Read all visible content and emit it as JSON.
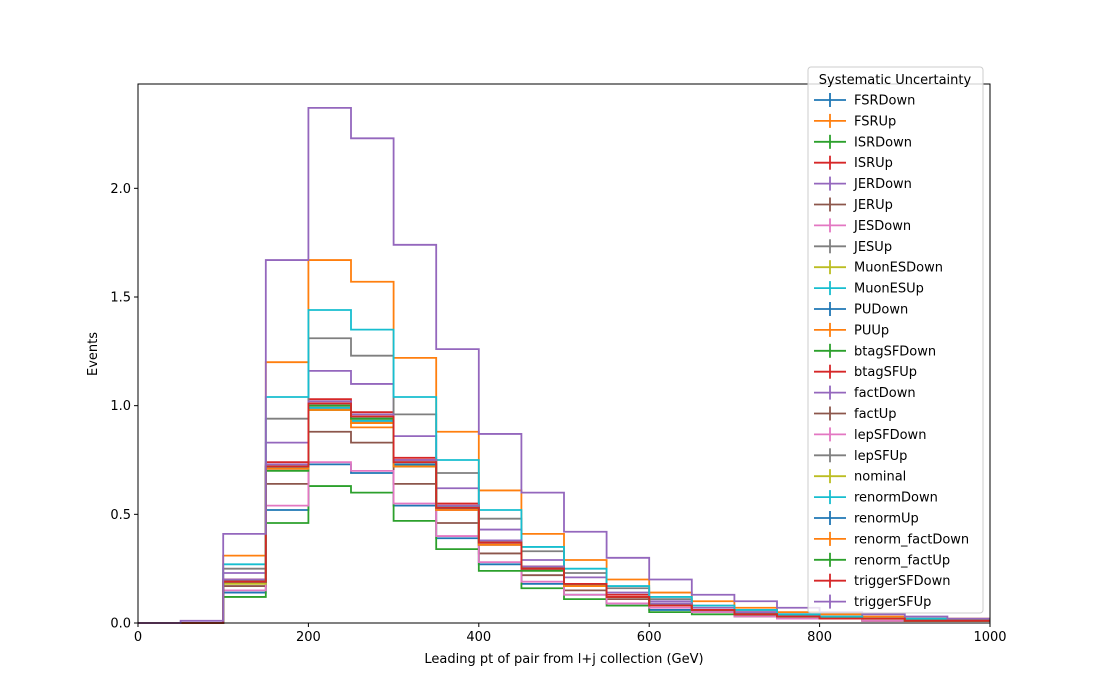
{
  "chart_data": {
    "type": "histogram-step",
    "xlabel": "Leading pt of pair from l+j collection (GeV)",
    "ylabel": "Events",
    "xlim": [
      0,
      1000
    ],
    "ylim": [
      0,
      2.48
    ],
    "grid": false,
    "legend": {
      "title": "Systematic Uncertainty",
      "placement": "upper-right"
    },
    "bin_edges": [
      0,
      50,
      100,
      150,
      200,
      250,
      300,
      350,
      400,
      450,
      500,
      550,
      600,
      650,
      700,
      750,
      800,
      850,
      900,
      950,
      1000
    ],
    "x_ticks": [
      0,
      200,
      400,
      600,
      800,
      1000
    ],
    "y_ticks": [
      0.0,
      0.5,
      1.0,
      1.5,
      2.0
    ],
    "y_tick_labels": [
      "0.0",
      "0.5",
      "1.0",
      "1.5",
      "2.0"
    ],
    "series": [
      {
        "name": "FSRDown",
        "color": "#1f77b4",
        "values": [
          0.0,
          0.0,
          0.14,
          0.52,
          0.73,
          0.69,
          0.54,
          0.39,
          0.27,
          0.18,
          0.13,
          0.09,
          0.06,
          0.05,
          0.04,
          0.03,
          0.02,
          0.02,
          0.01,
          0.01
        ]
      },
      {
        "name": "FSRUp",
        "color": "#ff7f0e",
        "values": [
          0.0,
          0.0,
          0.31,
          1.2,
          1.67,
          1.57,
          1.22,
          0.88,
          0.61,
          0.41,
          0.29,
          0.2,
          0.14,
          0.1,
          0.07,
          0.05,
          0.04,
          0.03,
          0.02,
          0.02
        ]
      },
      {
        "name": "ISRDown",
        "color": "#2ca02c",
        "values": [
          0.0,
          0.0,
          0.12,
          0.46,
          0.63,
          0.6,
          0.47,
          0.34,
          0.24,
          0.16,
          0.11,
          0.08,
          0.05,
          0.04,
          0.03,
          0.02,
          0.02,
          0.01,
          0.01,
          0.01
        ]
      },
      {
        "name": "ISRUp",
        "color": "#d62728",
        "values": [
          0.0,
          0.0,
          0.2,
          0.74,
          1.03,
          0.97,
          0.76,
          0.55,
          0.38,
          0.26,
          0.18,
          0.13,
          0.09,
          0.06,
          0.05,
          0.03,
          0.02,
          0.02,
          0.01,
          0.01
        ]
      },
      {
        "name": "JERDown",
        "color": "#9467bd",
        "values": [
          0.0,
          0.0,
          0.23,
          0.83,
          1.16,
          1.1,
          0.86,
          0.62,
          0.43,
          0.29,
          0.21,
          0.14,
          0.1,
          0.07,
          0.05,
          0.04,
          0.03,
          0.02,
          0.01,
          0.01
        ]
      },
      {
        "name": "JERUp",
        "color": "#8c564b",
        "values": [
          0.0,
          0.0,
          0.17,
          0.64,
          0.88,
          0.83,
          0.64,
          0.46,
          0.32,
          0.22,
          0.15,
          0.11,
          0.08,
          0.05,
          0.04,
          0.03,
          0.02,
          0.01,
          0.01,
          0.01
        ]
      },
      {
        "name": "JESDown",
        "color": "#e377c2",
        "values": [
          0.0,
          0.0,
          0.15,
          0.54,
          0.74,
          0.7,
          0.55,
          0.4,
          0.28,
          0.19,
          0.13,
          0.09,
          0.07,
          0.05,
          0.03,
          0.02,
          0.02,
          0.01,
          0.01,
          0.01
        ]
      },
      {
        "name": "JESUp",
        "color": "#7f7f7f",
        "values": [
          0.0,
          0.0,
          0.25,
          0.94,
          1.31,
          1.23,
          0.96,
          0.69,
          0.48,
          0.33,
          0.23,
          0.16,
          0.11,
          0.08,
          0.06,
          0.04,
          0.03,
          0.02,
          0.02,
          0.01
        ]
      },
      {
        "name": "MuonESDown",
        "color": "#bcbd22",
        "values": [
          0.0,
          0.0,
          0.18,
          0.71,
          0.99,
          0.93,
          0.73,
          0.52,
          0.36,
          0.25,
          0.17,
          0.12,
          0.08,
          0.06,
          0.04,
          0.03,
          0.02,
          0.02,
          0.01,
          0.01
        ]
      },
      {
        "name": "MuonESUp",
        "color": "#17becf",
        "values": [
          0.0,
          0.0,
          0.27,
          1.04,
          1.44,
          1.35,
          1.04,
          0.75,
          0.52,
          0.35,
          0.25,
          0.17,
          0.12,
          0.08,
          0.06,
          0.04,
          0.03,
          0.02,
          0.02,
          0.01
        ]
      },
      {
        "name": "PUDown",
        "color": "#1f77b4",
        "values": [
          0.0,
          0.0,
          0.19,
          0.72,
          1.0,
          0.94,
          0.73,
          0.53,
          0.37,
          0.25,
          0.17,
          0.12,
          0.08,
          0.06,
          0.04,
          0.03,
          0.02,
          0.02,
          0.01,
          0.01
        ]
      },
      {
        "name": "PUUp",
        "color": "#ff7f0e",
        "values": [
          0.0,
          0.0,
          0.19,
          0.72,
          0.99,
          0.9,
          0.72,
          0.52,
          0.36,
          0.25,
          0.17,
          0.12,
          0.08,
          0.06,
          0.04,
          0.03,
          0.02,
          0.02,
          0.01,
          0.01
        ]
      },
      {
        "name": "btagSFDown",
        "color": "#2ca02c",
        "values": [
          0.0,
          0.0,
          0.19,
          0.7,
          0.98,
          0.92,
          0.72,
          0.52,
          0.36,
          0.24,
          0.17,
          0.12,
          0.08,
          0.06,
          0.04,
          0.03,
          0.02,
          0.02,
          0.01,
          0.01
        ]
      },
      {
        "name": "btagSFUp",
        "color": "#d62728",
        "values": [
          0.0,
          0.0,
          0.2,
          0.73,
          1.02,
          0.96,
          0.75,
          0.54,
          0.37,
          0.26,
          0.18,
          0.12,
          0.09,
          0.06,
          0.04,
          0.03,
          0.02,
          0.02,
          0.01,
          0.01
        ]
      },
      {
        "name": "factDown",
        "color": "#9467bd",
        "values": [
          0.0,
          0.0,
          0.2,
          0.73,
          1.02,
          0.96,
          0.75,
          0.54,
          0.38,
          0.26,
          0.18,
          0.12,
          0.09,
          0.06,
          0.04,
          0.03,
          0.02,
          0.02,
          0.01,
          0.01
        ]
      },
      {
        "name": "factUp",
        "color": "#8c564b",
        "values": [
          0.0,
          0.0,
          0.19,
          0.71,
          0.99,
          0.93,
          0.73,
          0.52,
          0.36,
          0.25,
          0.17,
          0.12,
          0.08,
          0.06,
          0.04,
          0.03,
          0.02,
          0.02,
          0.01,
          0.01
        ]
      },
      {
        "name": "lepSFDown",
        "color": "#e377c2",
        "values": [
          0.0,
          0.0,
          0.19,
          0.71,
          0.99,
          0.93,
          0.73,
          0.52,
          0.36,
          0.25,
          0.17,
          0.12,
          0.08,
          0.06,
          0.04,
          0.03,
          0.02,
          0.02,
          0.01,
          0.01
        ]
      },
      {
        "name": "lepSFUp",
        "color": "#7f7f7f",
        "values": [
          0.0,
          0.0,
          0.19,
          0.72,
          1.0,
          0.94,
          0.73,
          0.53,
          0.37,
          0.25,
          0.17,
          0.12,
          0.08,
          0.06,
          0.04,
          0.03,
          0.02,
          0.02,
          0.01,
          0.01
        ]
      },
      {
        "name": "nominal",
        "color": "#bcbd22",
        "values": [
          0.0,
          0.0,
          0.19,
          0.72,
          1.0,
          0.94,
          0.73,
          0.53,
          0.37,
          0.25,
          0.17,
          0.12,
          0.08,
          0.06,
          0.04,
          0.03,
          0.02,
          0.02,
          0.01,
          0.01
        ]
      },
      {
        "name": "renormDown",
        "color": "#17becf",
        "values": [
          0.0,
          0.0,
          0.19,
          0.71,
          0.99,
          0.93,
          0.73,
          0.53,
          0.37,
          0.25,
          0.17,
          0.12,
          0.08,
          0.06,
          0.04,
          0.03,
          0.02,
          0.02,
          0.01,
          0.01
        ]
      },
      {
        "name": "renormUp",
        "color": "#1f77b4",
        "values": [
          0.0,
          0.0,
          0.19,
          0.72,
          1.0,
          0.94,
          0.73,
          0.53,
          0.37,
          0.25,
          0.17,
          0.12,
          0.08,
          0.06,
          0.04,
          0.03,
          0.02,
          0.02,
          0.01,
          0.01
        ]
      },
      {
        "name": "renorm_factDown",
        "color": "#ff7f0e",
        "values": [
          0.0,
          0.0,
          0.19,
          0.71,
          0.98,
          0.92,
          0.72,
          0.52,
          0.36,
          0.25,
          0.17,
          0.12,
          0.08,
          0.06,
          0.04,
          0.03,
          0.02,
          0.02,
          0.01,
          0.01
        ]
      },
      {
        "name": "renorm_factUp",
        "color": "#2ca02c",
        "values": [
          0.0,
          0.0,
          0.19,
          0.72,
          1.0,
          0.94,
          0.74,
          0.53,
          0.37,
          0.25,
          0.18,
          0.12,
          0.08,
          0.06,
          0.04,
          0.03,
          0.02,
          0.02,
          0.01,
          0.01
        ]
      },
      {
        "name": "triggerSFDown",
        "color": "#d62728",
        "values": [
          0.0,
          0.0,
          0.19,
          0.72,
          1.01,
          0.95,
          0.74,
          0.53,
          0.37,
          0.25,
          0.18,
          0.12,
          0.08,
          0.06,
          0.04,
          0.03,
          0.02,
          0.02,
          0.01,
          0.01
        ]
      },
      {
        "name": "triggerSFUp",
        "color": "#9467bd",
        "values": [
          0.0,
          0.01,
          0.41,
          1.67,
          2.37,
          2.23,
          1.74,
          1.26,
          0.87,
          0.6,
          0.42,
          0.3,
          0.2,
          0.13,
          0.1,
          0.07,
          0.05,
          0.04,
          0.03,
          0.02
        ]
      }
    ]
  }
}
